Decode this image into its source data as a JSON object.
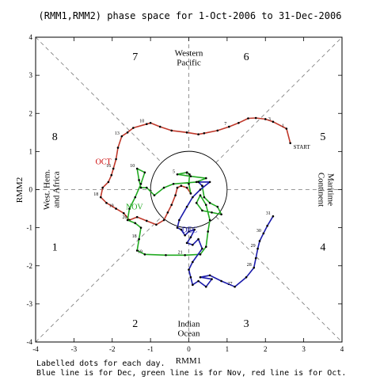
{
  "chart_data": {
    "type": "line",
    "title": "(RMM1,RMM2) phase space for  1-Oct-2006 to 31-Dec-2006",
    "xlabel": "RMM1",
    "ylabel": "RMM2",
    "xlim": [
      -4,
      4
    ],
    "ylim": [
      -4,
      4
    ],
    "xticks": [
      "-4",
      "-3",
      "-2",
      "-1",
      "0",
      "1",
      "2",
      "3",
      "4"
    ],
    "yticks": [
      "-4",
      "-3",
      "-2",
      "-1",
      "0",
      "1",
      "2",
      "3",
      "4"
    ],
    "grid": false,
    "circle_radius": 1,
    "phase_numbers": [
      {
        "label": "1",
        "x": -3.5,
        "y": -1.5
      },
      {
        "label": "2",
        "x": -1.4,
        "y": -3.5
      },
      {
        "label": "3",
        "x": 1.5,
        "y": -3.5
      },
      {
        "label": "4",
        "x": 3.5,
        "y": -1.5
      },
      {
        "label": "5",
        "x": 3.5,
        "y": 1.4
      },
      {
        "label": "6",
        "x": 1.5,
        "y": 3.5
      },
      {
        "label": "7",
        "x": -1.4,
        "y": 3.5
      },
      {
        "label": "8",
        "x": -3.5,
        "y": 1.4
      }
    ],
    "region_labels": {
      "top": [
        "Western",
        "Pacific"
      ],
      "bottom": [
        "Indian",
        "Ocean"
      ],
      "left": [
        "West. Hem.",
        "and Africa"
      ],
      "right": [
        "Maritime",
        "Continent"
      ]
    },
    "annotations": [
      {
        "text": "START",
        "x": 2.95,
        "y": 1.07,
        "color": "#000000"
      },
      {
        "text": "OCT",
        "x": -2.23,
        "y": 0.67,
        "color": "#cc0000"
      },
      {
        "text": "NOV",
        "x": -1.42,
        "y": -0.52,
        "color": "#22aa22"
      },
      {
        "text": "DEC",
        "x": 0.02,
        "y": -1.12,
        "color": "#1a1aaa"
      }
    ],
    "series": [
      {
        "name": "Oct",
        "color": "#c0392b",
        "points": [
          {
            "x": 2.65,
            "y": 1.22
          },
          {
            "x": 2.55,
            "y": 1.6,
            "label": "1"
          },
          {
            "x": 2.2,
            "y": 1.78,
            "label": "3"
          },
          {
            "x": 2.0,
            "y": 1.85
          },
          {
            "x": 1.75,
            "y": 1.88
          },
          {
            "x": 1.55,
            "y": 1.87
          },
          {
            "x": 1.3,
            "y": 1.75
          },
          {
            "x": 1.05,
            "y": 1.65,
            "label": "7"
          },
          {
            "x": 0.75,
            "y": 1.55
          },
          {
            "x": 0.4,
            "y": 1.48
          },
          {
            "x": 0.25,
            "y": 1.45
          },
          {
            "x": -0.05,
            "y": 1.5
          },
          {
            "x": -0.45,
            "y": 1.55
          },
          {
            "x": -0.75,
            "y": 1.65
          },
          {
            "x": -1.0,
            "y": 1.75
          },
          {
            "x": -1.1,
            "y": 1.72,
            "label": "10"
          },
          {
            "x": -1.45,
            "y": 1.62
          },
          {
            "x": -1.6,
            "y": 1.5
          },
          {
            "x": -1.75,
            "y": 1.4,
            "label": "13"
          },
          {
            "x": -1.85,
            "y": 1.1
          },
          {
            "x": -1.9,
            "y": 0.8
          },
          {
            "x": -1.97,
            "y": 0.55,
            "label": "16"
          },
          {
            "x": -2.02,
            "y": 0.38
          },
          {
            "x": -2.1,
            "y": 0.2
          },
          {
            "x": -2.25,
            "y": 0.05
          },
          {
            "x": -2.3,
            "y": -0.2,
            "label": "18"
          },
          {
            "x": -2.15,
            "y": -0.35
          },
          {
            "x": -1.9,
            "y": -0.5,
            "label": "19"
          },
          {
            "x": -1.7,
            "y": -0.62
          },
          {
            "x": -1.55,
            "y": -0.8,
            "label": "20"
          },
          {
            "x": -1.35,
            "y": -0.72
          },
          {
            "x": -1.1,
            "y": -0.82
          },
          {
            "x": -0.85,
            "y": -0.92
          },
          {
            "x": -0.65,
            "y": -0.8
          },
          {
            "x": -0.55,
            "y": -0.6
          },
          {
            "x": -0.45,
            "y": -0.4
          },
          {
            "x": -0.35,
            "y": -0.15
          },
          {
            "x": -0.3,
            "y": 0.05
          },
          {
            "x": -0.2,
            "y": 0.1
          },
          {
            "x": -0.05,
            "y": 0.05
          },
          {
            "x": 0.05,
            "y": -0.1
          }
        ]
      },
      {
        "name": "Nov",
        "color": "#22aa22",
        "points": [
          {
            "x": 0.05,
            "y": -0.1
          },
          {
            "x": 0.0,
            "y": 0.15
          },
          {
            "x": 0.02,
            "y": 0.4
          },
          {
            "x": -0.05,
            "y": 0.45
          },
          {
            "x": -0.3,
            "y": 0.4,
            "label": "5"
          },
          {
            "x": 0.05,
            "y": 0.35,
            "label": "6"
          },
          {
            "x": 0.45,
            "y": 0.3
          },
          {
            "x": 0.2,
            "y": 0.2
          },
          {
            "x": -0.4,
            "y": 0.15
          },
          {
            "x": -0.65,
            "y": 0.05
          },
          {
            "x": -0.9,
            "y": -0.15,
            "label": "7"
          },
          {
            "x": -1.1,
            "y": 0.05
          },
          {
            "x": -1.25,
            "y": 0.05
          },
          {
            "x": -1.3,
            "y": 0.25
          },
          {
            "x": -1.35,
            "y": 0.55,
            "label": "10"
          },
          {
            "x": -1.15,
            "y": 0.45
          },
          {
            "x": -1.25,
            "y": 0.15
          },
          {
            "x": -1.4,
            "y": -0.2
          },
          {
            "x": -1.55,
            "y": -0.5
          },
          {
            "x": -1.6,
            "y": -0.8
          },
          {
            "x": -1.4,
            "y": -0.88
          },
          {
            "x": -1.25,
            "y": -1.0
          },
          {
            "x": -1.3,
            "y": -1.3,
            "label": "18"
          },
          {
            "x": -1.35,
            "y": -1.6
          },
          {
            "x": -1.15,
            "y": -1.7,
            "label": "19"
          },
          {
            "x": -0.6,
            "y": -1.72
          },
          {
            "x": -0.1,
            "y": -1.72,
            "label": "21"
          },
          {
            "x": 0.3,
            "y": -1.7
          },
          {
            "x": 0.45,
            "y": -1.5
          },
          {
            "x": 0.5,
            "y": -1.1
          },
          {
            "x": 0.55,
            "y": -0.8
          },
          {
            "x": 0.45,
            "y": -0.4
          },
          {
            "x": 0.3,
            "y": -0.15
          },
          {
            "x": 0.2,
            "y": -0.35
          },
          {
            "x": 0.35,
            "y": -0.55
          },
          {
            "x": 0.6,
            "y": -0.6
          },
          {
            "x": 0.85,
            "y": -0.65
          },
          {
            "x": 0.75,
            "y": -0.45
          },
          {
            "x": 0.55,
            "y": -0.35
          },
          {
            "x": 0.4,
            "y": -0.2
          },
          {
            "x": 0.35,
            "y": 0.1
          }
        ]
      },
      {
        "name": "Dec",
        "color": "#1a1aaa",
        "points": [
          {
            "x": 0.35,
            "y": 0.1
          },
          {
            "x": 0.25,
            "y": 0.2
          },
          {
            "x": 0.55,
            "y": 0.2
          },
          {
            "x": 0.3,
            "y": 0.0
          },
          {
            "x": 0.1,
            "y": -0.2
          },
          {
            "x": -0.05,
            "y": -0.45
          },
          {
            "x": -0.25,
            "y": -0.8
          },
          {
            "x": -0.3,
            "y": -1.0
          },
          {
            "x": -0.2,
            "y": -1.05
          },
          {
            "x": -0.1,
            "y": -1.2
          },
          {
            "x": 0.0,
            "y": -1.1
          },
          {
            "x": 0.15,
            "y": -1.05
          },
          {
            "x": 0.05,
            "y": -1.25
          },
          {
            "x": -0.05,
            "y": -1.4
          },
          {
            "x": 0.1,
            "y": -1.45
          },
          {
            "x": 0.25,
            "y": -1.3
          },
          {
            "x": 0.35,
            "y": -1.55
          },
          {
            "x": 0.1,
            "y": -1.9
          },
          {
            "x": 0.0,
            "y": -2.1
          },
          {
            "x": 0.05,
            "y": -2.3
          },
          {
            "x": 0.1,
            "y": -2.5
          },
          {
            "x": 0.25,
            "y": -2.4
          },
          {
            "x": 0.45,
            "y": -2.55
          },
          {
            "x": 0.6,
            "y": -2.35
          },
          {
            "x": 0.3,
            "y": -2.3
          },
          {
            "x": 0.55,
            "y": -2.25
          },
          {
            "x": 0.85,
            "y": -2.4
          },
          {
            "x": 1.2,
            "y": -2.55,
            "label": "27"
          },
          {
            "x": 1.5,
            "y": -2.3
          },
          {
            "x": 1.7,
            "y": -2.05,
            "label": "28"
          },
          {
            "x": 1.75,
            "y": -1.8
          },
          {
            "x": 1.8,
            "y": -1.55,
            "label": "29"
          },
          {
            "x": 1.85,
            "y": -1.35
          },
          {
            "x": 1.95,
            "y": -1.15,
            "label": "30"
          },
          {
            "x": 2.05,
            "y": -0.95
          },
          {
            "x": 2.2,
            "y": -0.7,
            "label": "31"
          }
        ]
      }
    ]
  },
  "footnote": {
    "line1": "Labelled dots for each day.",
    "line2": "Blue line is for Dec, green line is for Nov, red line is for Oct."
  }
}
